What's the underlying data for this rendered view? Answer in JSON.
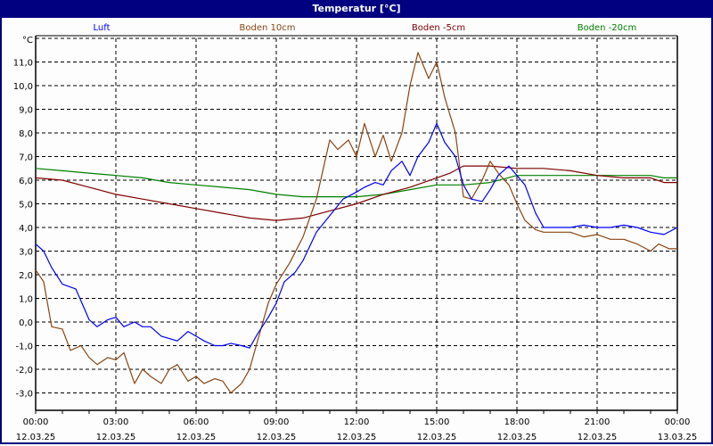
{
  "window": {
    "title": "Temperatur [°C]"
  },
  "colors": {
    "titlebar": "#000080",
    "luft": "#0000ff",
    "boden10": "#8b4513",
    "bodenm5": "#800000",
    "bodenm20": "#008000",
    "grid": "#000000"
  },
  "chart_data": {
    "type": "line",
    "title": "Temperatur [°C]",
    "xlabel": "",
    "ylabel": "°C",
    "ylim": [
      -3.7,
      12.2
    ],
    "xlim_hours": [
      0,
      24
    ],
    "grid": true,
    "legend_position": "top",
    "y_ticks": [
      "11,0",
      "10,0",
      "9,0",
      "8,0",
      "7,0",
      "6,0",
      "5,0",
      "4,0",
      "3,0",
      "2,0",
      "1,0",
      "0,0",
      "-1,0",
      "-2,0",
      "-3,0"
    ],
    "y_tick_values": [
      11,
      10,
      9,
      8,
      7,
      6,
      5,
      4,
      3,
      2,
      1,
      0,
      -1,
      -2,
      -3
    ],
    "y_unit_label": "°C",
    "x_ticks": [
      {
        "time": "00:00",
        "date": "12.03.25",
        "hour": 0
      },
      {
        "time": "03:00",
        "date": "12.03.25",
        "hour": 3
      },
      {
        "time": "06:00",
        "date": "12.03.25",
        "hour": 6
      },
      {
        "time": "09:00",
        "date": "12.03.25",
        "hour": 9
      },
      {
        "time": "12:00",
        "date": "12.03.25",
        "hour": 12
      },
      {
        "time": "15:00",
        "date": "12.03.25",
        "hour": 15
      },
      {
        "time": "18:00",
        "date": "12.03.25",
        "hour": 18
      },
      {
        "time": "21:00",
        "date": "12.03.25",
        "hour": 21
      },
      {
        "time": "00:00",
        "date": "13.03.25",
        "hour": 24
      }
    ],
    "series": [
      {
        "name": "Luft",
        "color": "#0000ff",
        "x": [
          0,
          0.3,
          0.6,
          1.0,
          1.5,
          2.0,
          2.3,
          2.7,
          3.0,
          3.3,
          3.7,
          4.0,
          4.3,
          4.7,
          5.0,
          5.3,
          5.7,
          6.0,
          6.3,
          6.7,
          7.0,
          7.3,
          7.7,
          8.0,
          8.3,
          8.7,
          9.0,
          9.3,
          9.7,
          10.0,
          10.5,
          11.0,
          11.5,
          12.0,
          12.3,
          12.7,
          13.0,
          13.3,
          13.7,
          14.0,
          14.3,
          14.7,
          15.0,
          15.3,
          15.7,
          16.0,
          16.3,
          16.7,
          17.0,
          17.3,
          17.7,
          18.0,
          18.3,
          18.7,
          19.0,
          19.3,
          19.7,
          20.0,
          20.5,
          21.0,
          21.5,
          22.0,
          22.5,
          23.0,
          23.5,
          24.0
        ],
        "values": [
          3.3,
          3.0,
          2.3,
          1.6,
          1.4,
          0.1,
          -0.2,
          0.1,
          0.2,
          -0.2,
          0.0,
          -0.2,
          -0.2,
          -0.6,
          -0.7,
          -0.8,
          -0.4,
          -0.6,
          -0.8,
          -1.0,
          -1.0,
          -0.9,
          -1.0,
          -1.1,
          -0.5,
          0.2,
          0.8,
          1.7,
          2.1,
          2.6,
          3.8,
          4.5,
          5.2,
          5.5,
          5.7,
          5.9,
          5.8,
          6.4,
          6.8,
          6.2,
          7.0,
          7.6,
          8.4,
          7.6,
          7.0,
          5.8,
          5.2,
          5.1,
          5.6,
          6.2,
          6.6,
          6.2,
          5.8,
          4.6,
          4.0,
          4.0,
          4.0,
          4.0,
          4.1,
          4.0,
          4.0,
          4.1,
          4.0,
          3.8,
          3.7,
          4.0
        ]
      },
      {
        "name": "Boden 10cm",
        "color": "#8b4513",
        "x": [
          0,
          0.3,
          0.6,
          1.0,
          1.3,
          1.7,
          2.0,
          2.3,
          2.7,
          3.0,
          3.3,
          3.7,
          4.0,
          4.3,
          4.7,
          5.0,
          5.3,
          5.7,
          6.0,
          6.3,
          6.7,
          7.0,
          7.3,
          7.7,
          8.0,
          8.3,
          8.7,
          9.0,
          9.5,
          10.0,
          10.5,
          11.0,
          11.3,
          11.7,
          12.0,
          12.3,
          12.7,
          13.0,
          13.3,
          13.7,
          14.0,
          14.3,
          14.7,
          15.0,
          15.3,
          15.7,
          16.0,
          16.3,
          16.7,
          17.0,
          17.3,
          17.7,
          18.0,
          18.3,
          18.7,
          19.0,
          19.5,
          20.0,
          20.5,
          21.0,
          21.5,
          22.0,
          22.5,
          23.0,
          23.3,
          23.7,
          24.0
        ],
        "values": [
          2.2,
          1.7,
          -0.2,
          -0.3,
          -1.2,
          -1.0,
          -1.5,
          -1.8,
          -1.5,
          -1.6,
          -1.3,
          -2.6,
          -2.0,
          -2.3,
          -2.6,
          -2.0,
          -1.8,
          -2.5,
          -2.3,
          -2.6,
          -2.4,
          -2.5,
          -3.0,
          -2.6,
          -2.0,
          -0.8,
          0.8,
          1.6,
          2.5,
          3.6,
          5.2,
          7.7,
          7.3,
          7.7,
          7.0,
          8.4,
          7.0,
          7.9,
          6.8,
          8.0,
          10.0,
          11.4,
          10.3,
          11.0,
          9.5,
          8.0,
          5.3,
          5.2,
          6.0,
          6.8,
          6.3,
          5.8,
          5.0,
          4.3,
          3.9,
          3.8,
          3.8,
          3.8,
          3.6,
          3.7,
          3.5,
          3.5,
          3.3,
          3.0,
          3.3,
          3.1,
          3.1
        ]
      },
      {
        "name": "Boden -5cm",
        "color": "#800000",
        "x": [
          0,
          1,
          2,
          3,
          4,
          5,
          6,
          7,
          8,
          9,
          10,
          11,
          12,
          13,
          14,
          15,
          15.5,
          16,
          17,
          18,
          19,
          20,
          21,
          22,
          23,
          23.5,
          24
        ],
        "values": [
          6.1,
          6.0,
          5.7,
          5.4,
          5.2,
          5.0,
          4.8,
          4.6,
          4.4,
          4.3,
          4.4,
          4.7,
          5.0,
          5.4,
          5.7,
          6.1,
          6.3,
          6.6,
          6.6,
          6.5,
          6.5,
          6.4,
          6.2,
          6.1,
          6.1,
          5.9,
          5.9
        ]
      },
      {
        "name": "Boden -20cm",
        "color": "#008000",
        "x": [
          0,
          1,
          2,
          3,
          4,
          5,
          6,
          7,
          8,
          9,
          10,
          11,
          12,
          13,
          14,
          15,
          16,
          17,
          18,
          19,
          20,
          21,
          22,
          23,
          23.5,
          24
        ],
        "values": [
          6.5,
          6.4,
          6.3,
          6.2,
          6.1,
          5.9,
          5.8,
          5.7,
          5.6,
          5.4,
          5.3,
          5.3,
          5.3,
          5.4,
          5.6,
          5.8,
          5.8,
          5.9,
          6.2,
          6.2,
          6.2,
          6.2,
          6.2,
          6.2,
          6.1,
          6.1
        ]
      }
    ]
  }
}
